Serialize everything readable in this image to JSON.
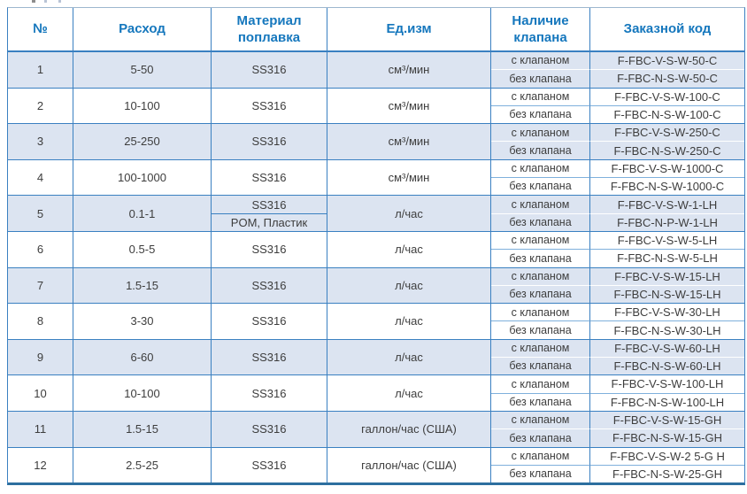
{
  "colors": {
    "border": "#3a80c1",
    "header_text": "#1577bd",
    "body_text": "#3d3d3d",
    "row_alt_bg": "#dce4f1",
    "subdivider_on_white": "#7fb0dc",
    "bottom_bar": "#2d6f9f"
  },
  "table": {
    "headers": [
      "№",
      "Расход",
      "Материал поплавка",
      "Ед.изм",
      "Наличие клапана",
      "Заказной код"
    ],
    "valve_with_label": "с клапаном",
    "valve_without_label": "без клапана",
    "rows": [
      {
        "num": "1",
        "flow": "5-50",
        "materials": [
          "SS316"
        ],
        "unit": "см³/мин",
        "code_with": "F-FBC-V-S-W-50-C",
        "code_without": "F-FBC-N-S-W-50-C"
      },
      {
        "num": "2",
        "flow": "10-100",
        "materials": [
          "SS316"
        ],
        "unit": "см³/мин",
        "code_with": "F-FBC-V-S-W-100-C",
        "code_without": "F-FBC-N-S-W-100-C"
      },
      {
        "num": "3",
        "flow": "25-250",
        "materials": [
          "SS316"
        ],
        "unit": "см³/мин",
        "code_with": "F-FBC-V-S-W-250-C",
        "code_without": "F-FBC-N-S-W-250-C"
      },
      {
        "num": "4",
        "flow": "100-1000",
        "materials": [
          "SS316"
        ],
        "unit": "см³/мин",
        "code_with": "F-FBC-V-S-W-1000-C",
        "code_without": "F-FBC-N-S-W-1000-C"
      },
      {
        "num": "5",
        "flow": "0.1-1",
        "materials": [
          "SS316",
          "POM, Пластик"
        ],
        "unit": "л/час",
        "code_with": "F-FBC-V-S-W-1-LH",
        "code_without": "F-FBC-N-P-W-1-LH"
      },
      {
        "num": "6",
        "flow": "0.5-5",
        "materials": [
          "SS316"
        ],
        "unit": "л/час",
        "code_with": "F-FBC-V-S-W-5-LH",
        "code_without": "F-FBC-N-S-W-5-LH"
      },
      {
        "num": "7",
        "flow": "1.5-15",
        "materials": [
          "SS316"
        ],
        "unit": "л/час",
        "code_with": "F-FBC-V-S-W-15-LH",
        "code_without": "F-FBC-N-S-W-15-LH"
      },
      {
        "num": "8",
        "flow": "3-30",
        "materials": [
          "SS316"
        ],
        "unit": "л/час",
        "code_with": "F-FBC-V-S-W-30-LH",
        "code_without": "F-FBC-N-S-W-30-LH"
      },
      {
        "num": "9",
        "flow": "6-60",
        "materials": [
          "SS316"
        ],
        "unit": "л/час",
        "code_with": "F-FBC-V-S-W-60-LH",
        "code_without": "F-FBC-N-S-W-60-LH"
      },
      {
        "num": "10",
        "flow": "10-100",
        "materials": [
          "SS316"
        ],
        "unit": "л/час",
        "code_with": "F-FBC-V-S-W-100-LH",
        "code_without": "F-FBC-N-S-W-100-LH"
      },
      {
        "num": "11",
        "flow": "1.5-15",
        "materials": [
          "SS316"
        ],
        "unit": "галлон/час (США)",
        "code_with": "F-FBC-V-S-W-15-GH",
        "code_without": "F-FBC-N-S-W-15-GH"
      },
      {
        "num": "12",
        "flow": "2.5-25",
        "materials": [
          "SS316"
        ],
        "unit": "галлон/час (США)",
        "code_with": "F-FBC-V-S-W-2 5-G H",
        "code_without": "F-FBC-N-S-W-25-GH"
      }
    ]
  }
}
